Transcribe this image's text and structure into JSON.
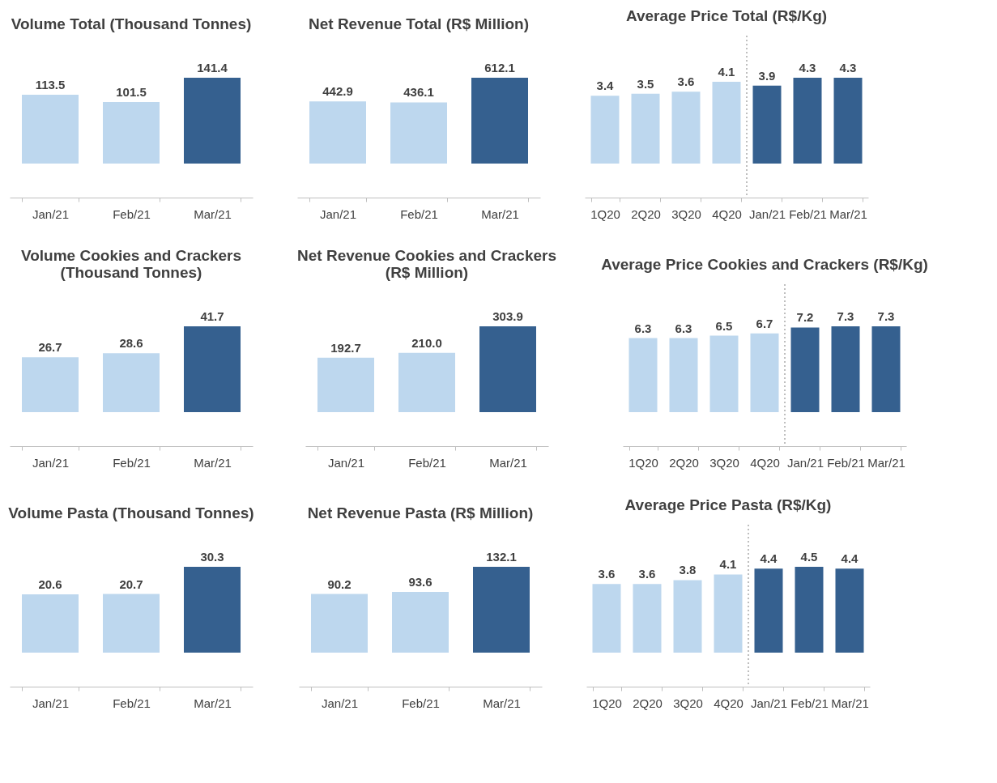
{
  "chart_data": [
    {
      "type": "bar",
      "title": "Volume Total (Thousand Tonnes)",
      "categories": [
        "Jan/21",
        "Feb/21",
        "Mar/21"
      ],
      "values": [
        113.5,
        101.5,
        141.4
      ],
      "colors": [
        "#bdd7ee",
        "#bdd7ee",
        "#35608f"
      ],
      "data_labels": true,
      "tick_labels": "x"
    },
    {
      "type": "bar",
      "title": "Net Revenue Total (R$ Million)",
      "categories": [
        "Jan/21",
        "Feb/21",
        "Mar/21"
      ],
      "values": [
        442.9,
        436.1,
        612.1
      ],
      "colors": [
        "#bdd7ee",
        "#bdd7ee",
        "#35608f"
      ],
      "data_labels": true,
      "tick_labels": "x"
    },
    {
      "type": "bar",
      "title": "Average Price Total (R$/Kg)",
      "categories": [
        "1Q20",
        "2Q20",
        "3Q20",
        "4Q20",
        "Jan/21",
        "Feb/21",
        "Mar/21"
      ],
      "values": [
        3.4,
        3.5,
        3.6,
        4.1,
        3.9,
        4.3,
        4.3
      ],
      "colors": [
        "#bdd7ee",
        "#bdd7ee",
        "#bdd7ee",
        "#bdd7ee",
        "#35608f",
        "#35608f",
        "#35608f"
      ],
      "data_labels": true,
      "tick_labels": "x"
    },
    {
      "type": "bar",
      "title": "Volume Cookies and Crackers (Thousand Tonnes)",
      "categories": [
        "Jan/21",
        "Feb/21",
        "Mar/21"
      ],
      "values": [
        26.7,
        28.6,
        41.7
      ],
      "colors": [
        "#bdd7ee",
        "#bdd7ee",
        "#35608f"
      ],
      "data_labels": true,
      "tick_labels": "x"
    },
    {
      "type": "bar",
      "title": "Net Revenue Cookies and Crackers (R$ Million)",
      "categories": [
        "Jan/21",
        "Feb/21",
        "Mar/21"
      ],
      "values": [
        192.7,
        210.0,
        303.9
      ],
      "value_labels": [
        "192.7",
        "210.0",
        "303.9"
      ],
      "colors": [
        "#bdd7ee",
        "#bdd7ee",
        "#35608f"
      ],
      "tick_labels": "x"
    },
    {
      "type": "bar",
      "title": "Average Price Cookies and Crackers (R$/Kg)",
      "categories": [
        "1Q20",
        "2Q20",
        "3Q20",
        "4Q20",
        "Jan/21",
        "Feb/21",
        "Mar/21"
      ],
      "values": [
        6.3,
        6.3,
        6.5,
        6.7,
        7.2,
        7.3,
        7.3
      ],
      "colors": [
        "#bdd7ee",
        "#bdd7ee",
        "#bdd7ee",
        "#bdd7ee",
        "#35608f",
        "#35608f",
        "#35608f"
      ],
      "data_labels": true,
      "tick_labels": "x"
    },
    {
      "type": "bar",
      "title": "Volume Pasta (Thousand Tonnes)",
      "categories": [
        "Jan/21",
        "Feb/21",
        "Mar/21"
      ],
      "values": [
        20.6,
        20.7,
        30.3
      ],
      "colors": [
        "#bdd7ee",
        "#bdd7ee",
        "#35608f"
      ],
      "data_labels": true,
      "tick_labels": "x"
    },
    {
      "type": "bar",
      "title": "Net Revenue Pasta (R$ Million)",
      "categories": [
        "Jan/21",
        "Feb/21",
        "Mar/21"
      ],
      "values": [
        90.2,
        93.6,
        132.1
      ],
      "colors": [
        "#bdd7ee",
        "#bdd7ee",
        "#35608f"
      ],
      "data_labels": true,
      "tick_labels": "x"
    },
    {
      "type": "bar",
      "title": "Average Price Pasta (R$/Kg)",
      "categories": [
        "1Q20",
        "2Q20",
        "3Q20",
        "4Q20",
        "Jan/21",
        "Feb/21",
        "Mar/21"
      ],
      "values": [
        3.6,
        3.6,
        3.8,
        4.1,
        4.4,
        4.5,
        4.4
      ],
      "colors": [
        "#bdd7ee",
        "#bdd7ee",
        "#bdd7ee",
        "#bdd7ee",
        "#35608f",
        "#35608f",
        "#35608f"
      ],
      "data_labels": true,
      "tick_labels": "x"
    }
  ]
}
